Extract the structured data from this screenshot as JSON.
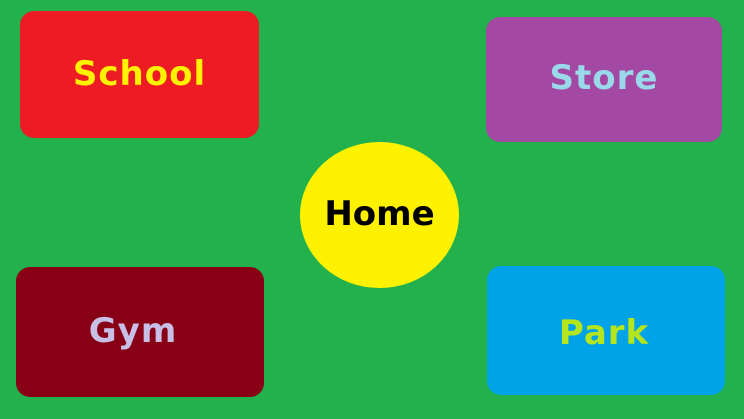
{
  "colors": {
    "background": "#22b14c",
    "school_fill": "#ed1c24",
    "school_text": "#fff200",
    "store_fill": "#a349a4",
    "store_text": "#99d9ea",
    "gym_fill": "#880015",
    "gym_text": "#c8bfe7",
    "park_fill": "#00a2e8",
    "park_text": "#b5e61d",
    "home_fill": "#fff200",
    "home_text": "#000000"
  },
  "map": {
    "home": {
      "label": "Home"
    },
    "places": [
      {
        "id": "school",
        "label": "School"
      },
      {
        "id": "store",
        "label": "Store"
      },
      {
        "id": "gym",
        "label": "Gym"
      },
      {
        "id": "park",
        "label": "Park"
      }
    ]
  }
}
